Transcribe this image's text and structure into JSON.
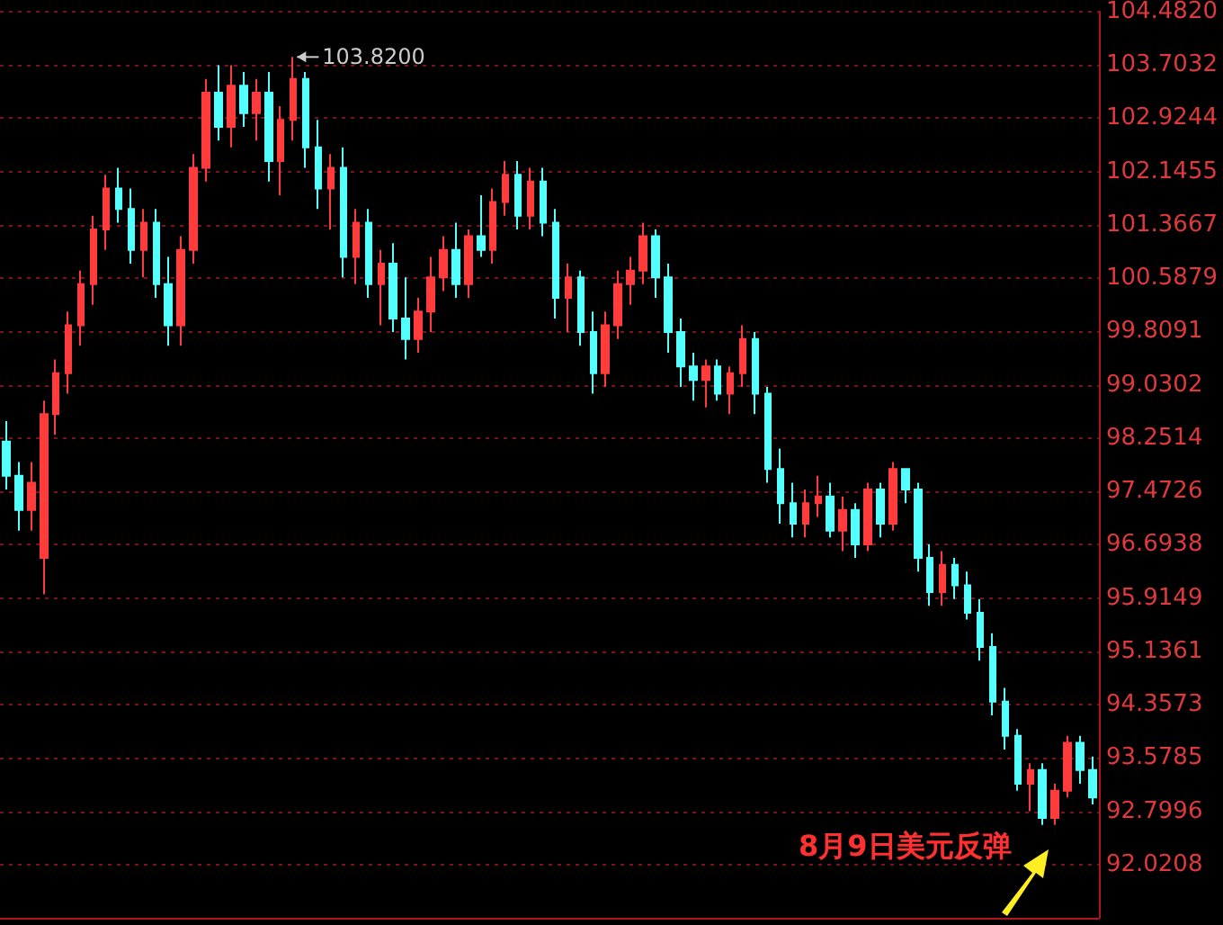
{
  "chart_data": {
    "type": "candlestick",
    "categories": [
      null,
      null,
      null,
      null,
      null,
      null,
      null,
      null,
      null,
      null,
      null,
      null,
      null,
      null,
      null,
      null,
      null,
      null,
      null,
      null,
      null,
      null,
      null,
      null,
      null,
      null,
      null,
      null,
      null,
      null,
      null,
      null,
      null,
      null,
      null,
      null,
      null,
      null,
      null,
      null,
      null,
      null,
      null,
      null,
      null,
      null,
      null,
      null,
      null,
      null,
      null,
      null,
      null,
      null,
      null,
      null,
      null,
      null,
      null,
      null,
      null,
      null,
      null,
      null,
      null,
      null,
      null,
      null,
      null,
      null,
      null,
      null,
      null,
      null,
      null,
      null,
      null,
      null,
      null,
      null,
      null,
      null,
      null,
      null,
      null,
      null,
      null,
      null
    ],
    "ohlc": [
      [
        98.2,
        98.5,
        97.5,
        97.7
      ],
      [
        97.7,
        97.9,
        96.9,
        97.2
      ],
      [
        97.2,
        97.9,
        96.9,
        97.6
      ],
      [
        96.5,
        98.8,
        95.97,
        98.6
      ],
      [
        98.6,
        99.4,
        98.3,
        99.2
      ],
      [
        99.2,
        100.1,
        98.9,
        99.9
      ],
      [
        99.9,
        100.7,
        99.6,
        100.5
      ],
      [
        100.5,
        101.5,
        100.2,
        101.3
      ],
      [
        101.3,
        102.1,
        101.0,
        101.9
      ],
      [
        101.9,
        102.2,
        101.4,
        101.6
      ],
      [
        101.6,
        101.9,
        100.8,
        101.0
      ],
      [
        101.0,
        101.6,
        100.6,
        101.4
      ],
      [
        101.4,
        101.6,
        100.3,
        100.5
      ],
      [
        100.5,
        100.9,
        99.6,
        99.9
      ],
      [
        99.9,
        101.2,
        99.6,
        101.0
      ],
      [
        101.0,
        102.4,
        100.8,
        102.2
      ],
      [
        102.2,
        103.5,
        102.0,
        103.3
      ],
      [
        103.3,
        103.7,
        102.6,
        102.8
      ],
      [
        102.8,
        103.7,
        102.5,
        103.4
      ],
      [
        103.4,
        103.6,
        102.8,
        103.0
      ],
      [
        103.0,
        103.5,
        102.6,
        103.3
      ],
      [
        103.3,
        103.6,
        102.0,
        102.3
      ],
      [
        102.3,
        103.1,
        101.8,
        102.9
      ],
      [
        102.9,
        103.82,
        102.6,
        103.5
      ],
      [
        103.5,
        103.6,
        102.2,
        102.5
      ],
      [
        102.5,
        102.9,
        101.6,
        101.9
      ],
      [
        101.9,
        102.4,
        101.3,
        102.2
      ],
      [
        102.2,
        102.5,
        100.6,
        100.9
      ],
      [
        100.9,
        101.6,
        100.5,
        101.4
      ],
      [
        101.4,
        101.6,
        100.3,
        100.5
      ],
      [
        100.5,
        101.0,
        99.9,
        100.8
      ],
      [
        100.8,
        101.1,
        99.8,
        100.0
      ],
      [
        100.0,
        100.6,
        99.4,
        99.7
      ],
      [
        99.7,
        100.3,
        99.5,
        100.1
      ],
      [
        100.1,
        100.9,
        99.8,
        100.6
      ],
      [
        100.6,
        101.2,
        100.4,
        101.0
      ],
      [
        101.0,
        101.4,
        100.3,
        100.5
      ],
      [
        100.5,
        101.3,
        100.3,
        101.2
      ],
      [
        101.2,
        101.8,
        100.9,
        101.0
      ],
      [
        101.0,
        101.9,
        100.8,
        101.7
      ],
      [
        101.7,
        102.3,
        101.5,
        102.1
      ],
      [
        102.1,
        102.3,
        101.3,
        101.5
      ],
      [
        101.5,
        102.2,
        101.3,
        102.0
      ],
      [
        102.0,
        102.2,
        101.2,
        101.4
      ],
      [
        101.4,
        101.6,
        100.0,
        100.3
      ],
      [
        100.3,
        100.8,
        99.8,
        100.6
      ],
      [
        100.6,
        100.7,
        99.6,
        99.8
      ],
      [
        99.8,
        100.1,
        98.9,
        99.2
      ],
      [
        99.2,
        100.1,
        99.0,
        99.9
      ],
      [
        99.9,
        100.7,
        99.7,
        100.5
      ],
      [
        100.5,
        100.9,
        100.2,
        100.7
      ],
      [
        100.7,
        101.4,
        100.5,
        101.2
      ],
      [
        101.2,
        101.3,
        100.3,
        100.6
      ],
      [
        100.6,
        100.8,
        99.5,
        99.8
      ],
      [
        99.8,
        100.0,
        99.0,
        99.3
      ],
      [
        99.3,
        99.5,
        98.8,
        99.1
      ],
      [
        99.1,
        99.4,
        98.7,
        99.3
      ],
      [
        99.3,
        99.4,
        98.8,
        98.9
      ],
      [
        98.9,
        99.3,
        98.6,
        99.2
      ],
      [
        99.2,
        99.9,
        99.0,
        99.7
      ],
      [
        99.7,
        99.8,
        98.6,
        98.9
      ],
      [
        98.9,
        99.0,
        97.6,
        97.8
      ],
      [
        97.8,
        98.1,
        97.0,
        97.3
      ],
      [
        97.3,
        97.6,
        96.8,
        97.0
      ],
      [
        97.0,
        97.5,
        96.8,
        97.3
      ],
      [
        97.3,
        97.7,
        97.1,
        97.4
      ],
      [
        97.4,
        97.6,
        96.8,
        96.9
      ],
      [
        96.9,
        97.4,
        96.6,
        97.2
      ],
      [
        97.2,
        97.3,
        96.5,
        96.7
      ],
      [
        96.7,
        97.6,
        96.6,
        97.5
      ],
      [
        97.5,
        97.6,
        96.8,
        97.0
      ],
      [
        97.0,
        97.9,
        96.9,
        97.8
      ],
      [
        97.8,
        97.8,
        97.3,
        97.5
      ],
      [
        97.5,
        97.6,
        96.3,
        96.5
      ],
      [
        96.5,
        96.7,
        95.8,
        96.0
      ],
      [
        96.0,
        96.6,
        95.8,
        96.4
      ],
      [
        96.4,
        96.5,
        95.9,
        96.1
      ],
      [
        96.1,
        96.3,
        95.6,
        95.7
      ],
      [
        95.7,
        95.9,
        95.0,
        95.2
      ],
      [
        95.2,
        95.4,
        94.2,
        94.4
      ],
      [
        94.4,
        94.6,
        93.7,
        93.9
      ],
      [
        93.9,
        94.0,
        93.1,
        93.2
      ],
      [
        93.2,
        93.5,
        92.8,
        93.4
      ],
      [
        93.4,
        93.5,
        92.6,
        92.7
      ],
      [
        92.7,
        93.2,
        92.6,
        93.1
      ],
      [
        93.1,
        93.9,
        93.0,
        93.8
      ],
      [
        93.8,
        93.9,
        93.2,
        93.4
      ],
      [
        93.4,
        93.6,
        92.9,
        93.0
      ]
    ],
    "colors": [
      "#54ffff",
      "#54ffff",
      "#ff3b3b",
      "#ff3b3b",
      "#ff3b3b",
      "#ff3b3b",
      "#ff3b3b",
      "#ff3b3b",
      "#ff3b3b",
      "#54ffff",
      "#54ffff",
      "#ff3b3b",
      "#54ffff",
      "#54ffff",
      "#ff3b3b",
      "#ff3b3b",
      "#ff3b3b",
      "#54ffff",
      "#ff3b3b",
      "#54ffff",
      "#ff3b3b",
      "#54ffff",
      "#ff3b3b",
      "#ff3b3b",
      "#54ffff",
      "#54ffff",
      "#ff3b3b",
      "#54ffff",
      "#ff3b3b",
      "#54ffff",
      "#ff3b3b",
      "#54ffff",
      "#54ffff",
      "#ff3b3b",
      "#ff3b3b",
      "#ff3b3b",
      "#54ffff",
      "#ff3b3b",
      "#54ffff",
      "#ff3b3b",
      "#ff3b3b",
      "#54ffff",
      "#ff3b3b",
      "#54ffff",
      "#54ffff",
      "#ff3b3b",
      "#54ffff",
      "#54ffff",
      "#ff3b3b",
      "#ff3b3b",
      "#ff3b3b",
      "#ff3b3b",
      "#54ffff",
      "#54ffff",
      "#54ffff",
      "#54ffff",
      "#ff3b3b",
      "#54ffff",
      "#ff3b3b",
      "#ff3b3b",
      "#54ffff",
      "#54ffff",
      "#54ffff",
      "#54ffff",
      "#ff3b3b",
      "#ff3b3b",
      "#54ffff",
      "#ff3b3b",
      "#54ffff",
      "#ff3b3b",
      "#54ffff",
      "#ff3b3b",
      "#54ffff",
      "#54ffff",
      "#54ffff",
      "#ff3b3b",
      "#54ffff",
      "#54ffff",
      "#54ffff",
      "#54ffff",
      "#54ffff",
      "#54ffff",
      "#ff3b3b",
      "#54ffff",
      "#ff3b3b",
      "#ff3b3b",
      "#54ffff",
      "#54ffff"
    ],
    "ylim": [
      91.242,
      104.482
    ],
    "yticks": [
      {
        "value": 92.0208,
        "label": "92.0208"
      },
      {
        "value": 92.7996,
        "label": "92.7996"
      },
      {
        "value": 93.5785,
        "label": "93.5785"
      },
      {
        "value": 94.3573,
        "label": "94.3573"
      },
      {
        "value": 95.1361,
        "label": "95.1361"
      },
      {
        "value": 95.9149,
        "label": "95.9149"
      },
      {
        "value": 96.6938,
        "label": "96.6938"
      },
      {
        "value": 97.4726,
        "label": "97.4726"
      },
      {
        "value": 98.2514,
        "label": "98.2514"
      },
      {
        "value": 99.0302,
        "label": "99.0302"
      },
      {
        "value": 99.8091,
        "label": "99.8091"
      },
      {
        "value": 100.5879,
        "label": "100.5879"
      },
      {
        "value": 101.3667,
        "label": "101.3667"
      },
      {
        "value": 102.1455,
        "label": "102.1455"
      },
      {
        "value": 102.9244,
        "label": "102.9244"
      },
      {
        "value": 103.7032,
        "label": "103.7032"
      },
      {
        "value": 104.482,
        "label": "104.4820"
      }
    ],
    "grid": "y",
    "annotations": [
      "103.8200",
      "8月9日美元反弹"
    ]
  }
}
